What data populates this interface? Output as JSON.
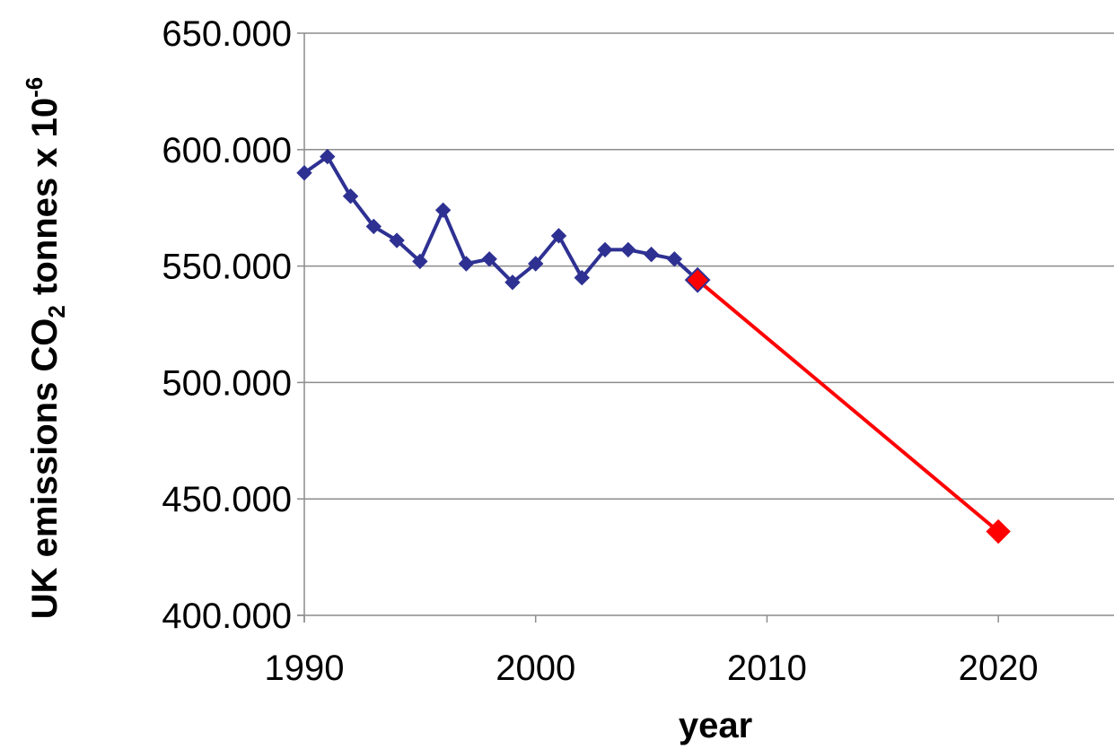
{
  "chart_data": {
    "type": "line",
    "title": "",
    "xlabel": "year",
    "ylabel": {
      "main": "UK emissions CO",
      "sub": "2",
      "rest": " tonnes x 10",
      "sup": "-6"
    },
    "xlim": [
      1990,
      2025
    ],
    "ylim": [
      400,
      650
    ],
    "x_ticks": [
      1990,
      2000,
      2010,
      2020
    ],
    "y_ticks": [
      400,
      450,
      500,
      550,
      600,
      650
    ],
    "x_tick_labels": [
      "1990",
      "2000",
      "2010",
      "2020"
    ],
    "y_tick_labels": [
      "400.000",
      "450.000",
      "500.000",
      "550.000",
      "600.000",
      "650.000"
    ],
    "grid": "horizontal",
    "series": [
      {
        "color": "#2e3192",
        "marker": "diamond",
        "x": [
          1990,
          1991,
          1992,
          1993,
          1994,
          1995,
          1996,
          1997,
          1998,
          1999,
          2000,
          2001,
          2002,
          2003,
          2004,
          2005,
          2006,
          2007
        ],
        "y": [
          590,
          597,
          580,
          567,
          561,
          552,
          574,
          551,
          553,
          543,
          551,
          563,
          545,
          557,
          557,
          555,
          553,
          544
        ]
      },
      {
        "color": "#ff0000",
        "marker": "diamond",
        "x": [
          2007,
          2020
        ],
        "y": [
          544,
          436
        ]
      }
    ]
  }
}
